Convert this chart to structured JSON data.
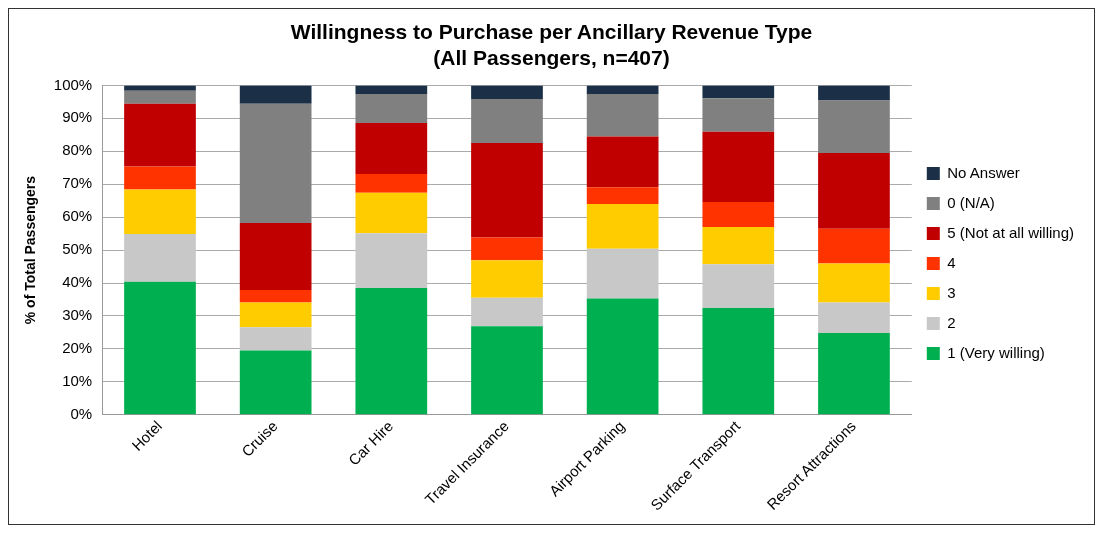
{
  "chart_data": {
    "type": "bar",
    "title": "Willingness to Purchase per Ancillary Revenue Type",
    "subtitle": "(All Passengers, n=407)",
    "ylabel": "% of Total Passengers",
    "categories": [
      "Hotel",
      "Cruise",
      "Car Hire",
      "Travel Insurance",
      "Airport Parking",
      "Surface Transport",
      "Resort Attractions"
    ],
    "stacked": true,
    "grid": "y",
    "legend": "right",
    "ylim": [
      0,
      100
    ],
    "yticks": [
      {
        "value": 0,
        "label": "0%"
      },
      {
        "value": 10,
        "label": "10%"
      },
      {
        "value": 20,
        "label": "20%"
      },
      {
        "value": 30,
        "label": "30%"
      },
      {
        "value": 40,
        "label": "40%"
      },
      {
        "value": 50,
        "label": "50%"
      },
      {
        "value": 60,
        "label": "60%"
      },
      {
        "value": 70,
        "label": "70%"
      },
      {
        "value": 80,
        "label": "80%"
      },
      {
        "value": 90,
        "label": "90%"
      },
      {
        "value": 100,
        "label": "100%"
      }
    ],
    "series": [
      {
        "name": "1 (Very willing)",
        "color": "#00b050",
        "values": [
          40.4,
          19.5,
          38.5,
          26.9,
          35.3,
          32.4,
          24.8
        ]
      },
      {
        "name": "2",
        "color": "#c8c8c8",
        "values": [
          14.5,
          7.1,
          16.6,
          8.6,
          15.1,
          13.3,
          9.3
        ]
      },
      {
        "name": "3",
        "color": "#ffcc00",
        "values": [
          13.5,
          7.5,
          12.3,
          11.4,
          13.6,
          11.3,
          11.8
        ]
      },
      {
        "name": "4",
        "color": "#ff3300",
        "values": [
          7.0,
          3.8,
          5.7,
          6.9,
          5.1,
          7.6,
          10.6
        ]
      },
      {
        "name": "5 (Not at all willing)",
        "color": "#c00000",
        "values": [
          19.0,
          20.3,
          15.5,
          28.7,
          15.4,
          21.3,
          23.0
        ]
      },
      {
        "name": "0 (N/A)",
        "color": "#808080",
        "values": [
          4.0,
          36.2,
          8.8,
          13.4,
          12.9,
          10.2,
          15.9
        ]
      },
      {
        "name": "No Answer",
        "color": "#1b2f47",
        "values": [
          1.6,
          5.6,
          2.6,
          4.1,
          2.6,
          3.9,
          4.6
        ]
      }
    ]
  }
}
